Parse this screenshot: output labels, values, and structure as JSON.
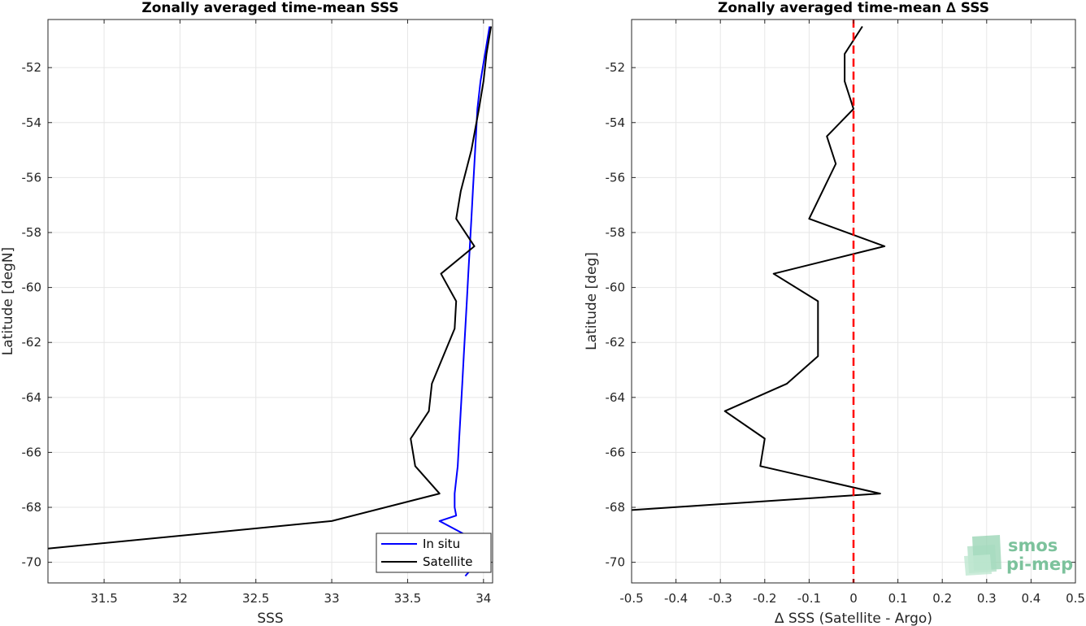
{
  "chart_data": [
    {
      "type": "line",
      "title": "Zonally averaged time-mean SSS",
      "xlabel": "SSS",
      "ylabel": "Latitude [degN]",
      "xlim": [
        31.13,
        34.06
      ],
      "ylim": [
        -70.75,
        -50.25
      ],
      "xticks": [
        31.5,
        32,
        32.5,
        33,
        33.5,
        34
      ],
      "xtick_labels": [
        "31.5",
        "32",
        "32.5",
        "33",
        "33.5",
        "34"
      ],
      "yticks": [
        -52,
        -54,
        -56,
        -58,
        -60,
        -62,
        -64,
        -66,
        -68,
        -70
      ],
      "ytick_labels": [
        "-52",
        "-54",
        "-56",
        "-58",
        "-60",
        "-62",
        "-64",
        "-66",
        "-68",
        "-70"
      ],
      "grid": true,
      "legend_position": "bottom-right",
      "series": [
        {
          "name": "In situ",
          "color": "#0000ff",
          "x": [
            34.04,
            34.01,
            33.98,
            33.96,
            33.95,
            33.94,
            33.93,
            33.92,
            33.91,
            33.9,
            33.89,
            33.88,
            33.87,
            33.86,
            33.85,
            33.84,
            33.83,
            33.82,
            33.81,
            33.81,
            33.82,
            33.71,
            33.71,
            33.88,
            34.04,
            33.88
          ],
          "y": [
            -50.5,
            -51.5,
            -52.5,
            -53.5,
            -54.5,
            -55.5,
            -56.5,
            -57.5,
            -58.5,
            -59.5,
            -60.5,
            -61.5,
            -62.5,
            -63.5,
            -64.5,
            -65.5,
            -66.5,
            -67.0,
            -67.5,
            -68.0,
            -68.3,
            -68.5,
            -68.5,
            -69.0,
            -69.5,
            -70.5
          ]
        },
        {
          "name": "Satellite",
          "color": "#000000",
          "x": [
            34.05,
            34.02,
            34.0,
            33.97,
            33.92,
            33.85,
            33.82,
            33.94,
            33.72,
            33.82,
            33.81,
            33.66,
            33.64,
            33.52,
            33.55,
            33.71,
            33.0,
            31.13
          ],
          "y": [
            -50.5,
            -51.5,
            -52.5,
            -53.5,
            -55.0,
            -56.5,
            -57.5,
            -58.5,
            -59.5,
            -60.5,
            -61.5,
            -63.5,
            -64.5,
            -65.5,
            -66.5,
            -67.5,
            -68.5,
            -69.5
          ]
        }
      ]
    },
    {
      "type": "line",
      "title": "Zonally averaged time-mean ∆ SSS",
      "xlabel": "∆ SSS (Satellite - Argo)",
      "ylabel": "Latitude [deg]",
      "xlim": [
        -0.5,
        0.5
      ],
      "ylim": [
        -70.75,
        -50.25
      ],
      "xticks": [
        -0.5,
        -0.4,
        -0.3,
        -0.2,
        -0.1,
        0,
        0.1,
        0.2,
        0.3,
        0.4,
        0.5
      ],
      "xtick_labels": [
        "-0.5",
        "-0.4",
        "-0.3",
        "-0.2",
        "-0.1",
        "0",
        "0.1",
        "0.2",
        "0.3",
        "0.4",
        "0.5"
      ],
      "yticks": [
        -52,
        -54,
        -56,
        -58,
        -60,
        -62,
        -64,
        -66,
        -68,
        -70
      ],
      "ytick_labels": [
        "-52",
        "-54",
        "-56",
        "-58",
        "-60",
        "-62",
        "-64",
        "-66",
        "-68",
        "-70"
      ],
      "grid": true,
      "reference_line": {
        "x": 0,
        "color": "#ff0000",
        "style": "dashed"
      },
      "series": [
        {
          "color": "#000000",
          "x": [
            0.02,
            -0.02,
            -0.02,
            0.0,
            -0.06,
            -0.04,
            -0.07,
            -0.1,
            0.07,
            -0.18,
            -0.08,
            -0.08,
            -0.08,
            -0.15,
            -0.29,
            -0.2,
            -0.21,
            0.06,
            -0.5
          ],
          "y": [
            -50.5,
            -51.5,
            -52.5,
            -53.5,
            -54.5,
            -55.5,
            -56.5,
            -57.5,
            -58.5,
            -59.5,
            -60.5,
            -61.5,
            -62.5,
            -63.5,
            -64.5,
            -65.5,
            -66.5,
            -67.5,
            -68.1
          ]
        }
      ]
    }
  ],
  "logo": {
    "line1": "smos",
    "line2": "pi-mep",
    "color": "#7cc29c"
  }
}
